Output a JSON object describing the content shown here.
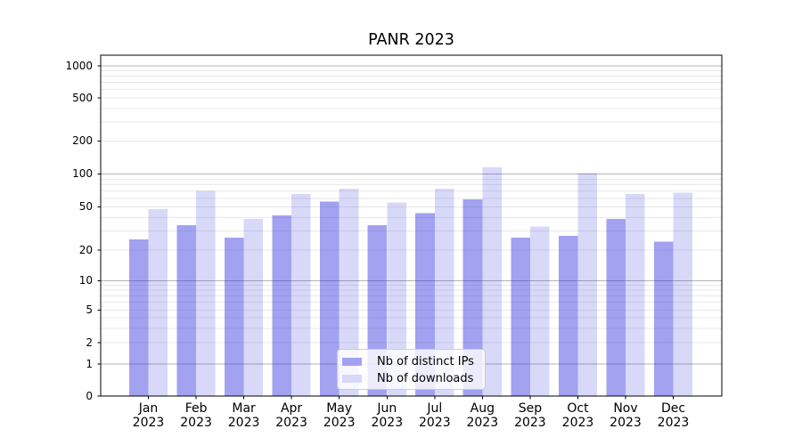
{
  "chart_data": {
    "type": "bar",
    "title": "PANR 2023",
    "year_label": "2023",
    "categories": [
      "Jan",
      "Feb",
      "Mar",
      "Apr",
      "May",
      "Jun",
      "Jul",
      "Aug",
      "Sep",
      "Oct",
      "Nov",
      "Dec"
    ],
    "series": [
      {
        "name": "Nb of distinct IPs",
        "color": "#3131de",
        "alpha": 0.45,
        "composited_color": "#a2a2f0",
        "values": [
          25,
          34,
          26,
          42,
          56,
          34,
          44,
          59,
          26,
          27,
          39,
          24
        ]
      },
      {
        "name": "Nb of downloads",
        "color": "#3131de",
        "alpha": 0.19,
        "composited_color": "#d8d8f9",
        "values": [
          48,
          70,
          39,
          66,
          74,
          55,
          74,
          115,
          33,
          102,
          66,
          68
        ]
      }
    ],
    "yscale": "symlog",
    "ytick_values": [
      0,
      1,
      2,
      5,
      10,
      20,
      50,
      100,
      200,
      500,
      1000
    ],
    "ytick_labels": [
      "0",
      "1",
      "2",
      "5",
      "10",
      "20",
      "50",
      "100",
      "200",
      "500",
      "1000"
    ],
    "ylim": [
      0,
      1200
    ],
    "grid": true,
    "legend_position": "lower center"
  }
}
